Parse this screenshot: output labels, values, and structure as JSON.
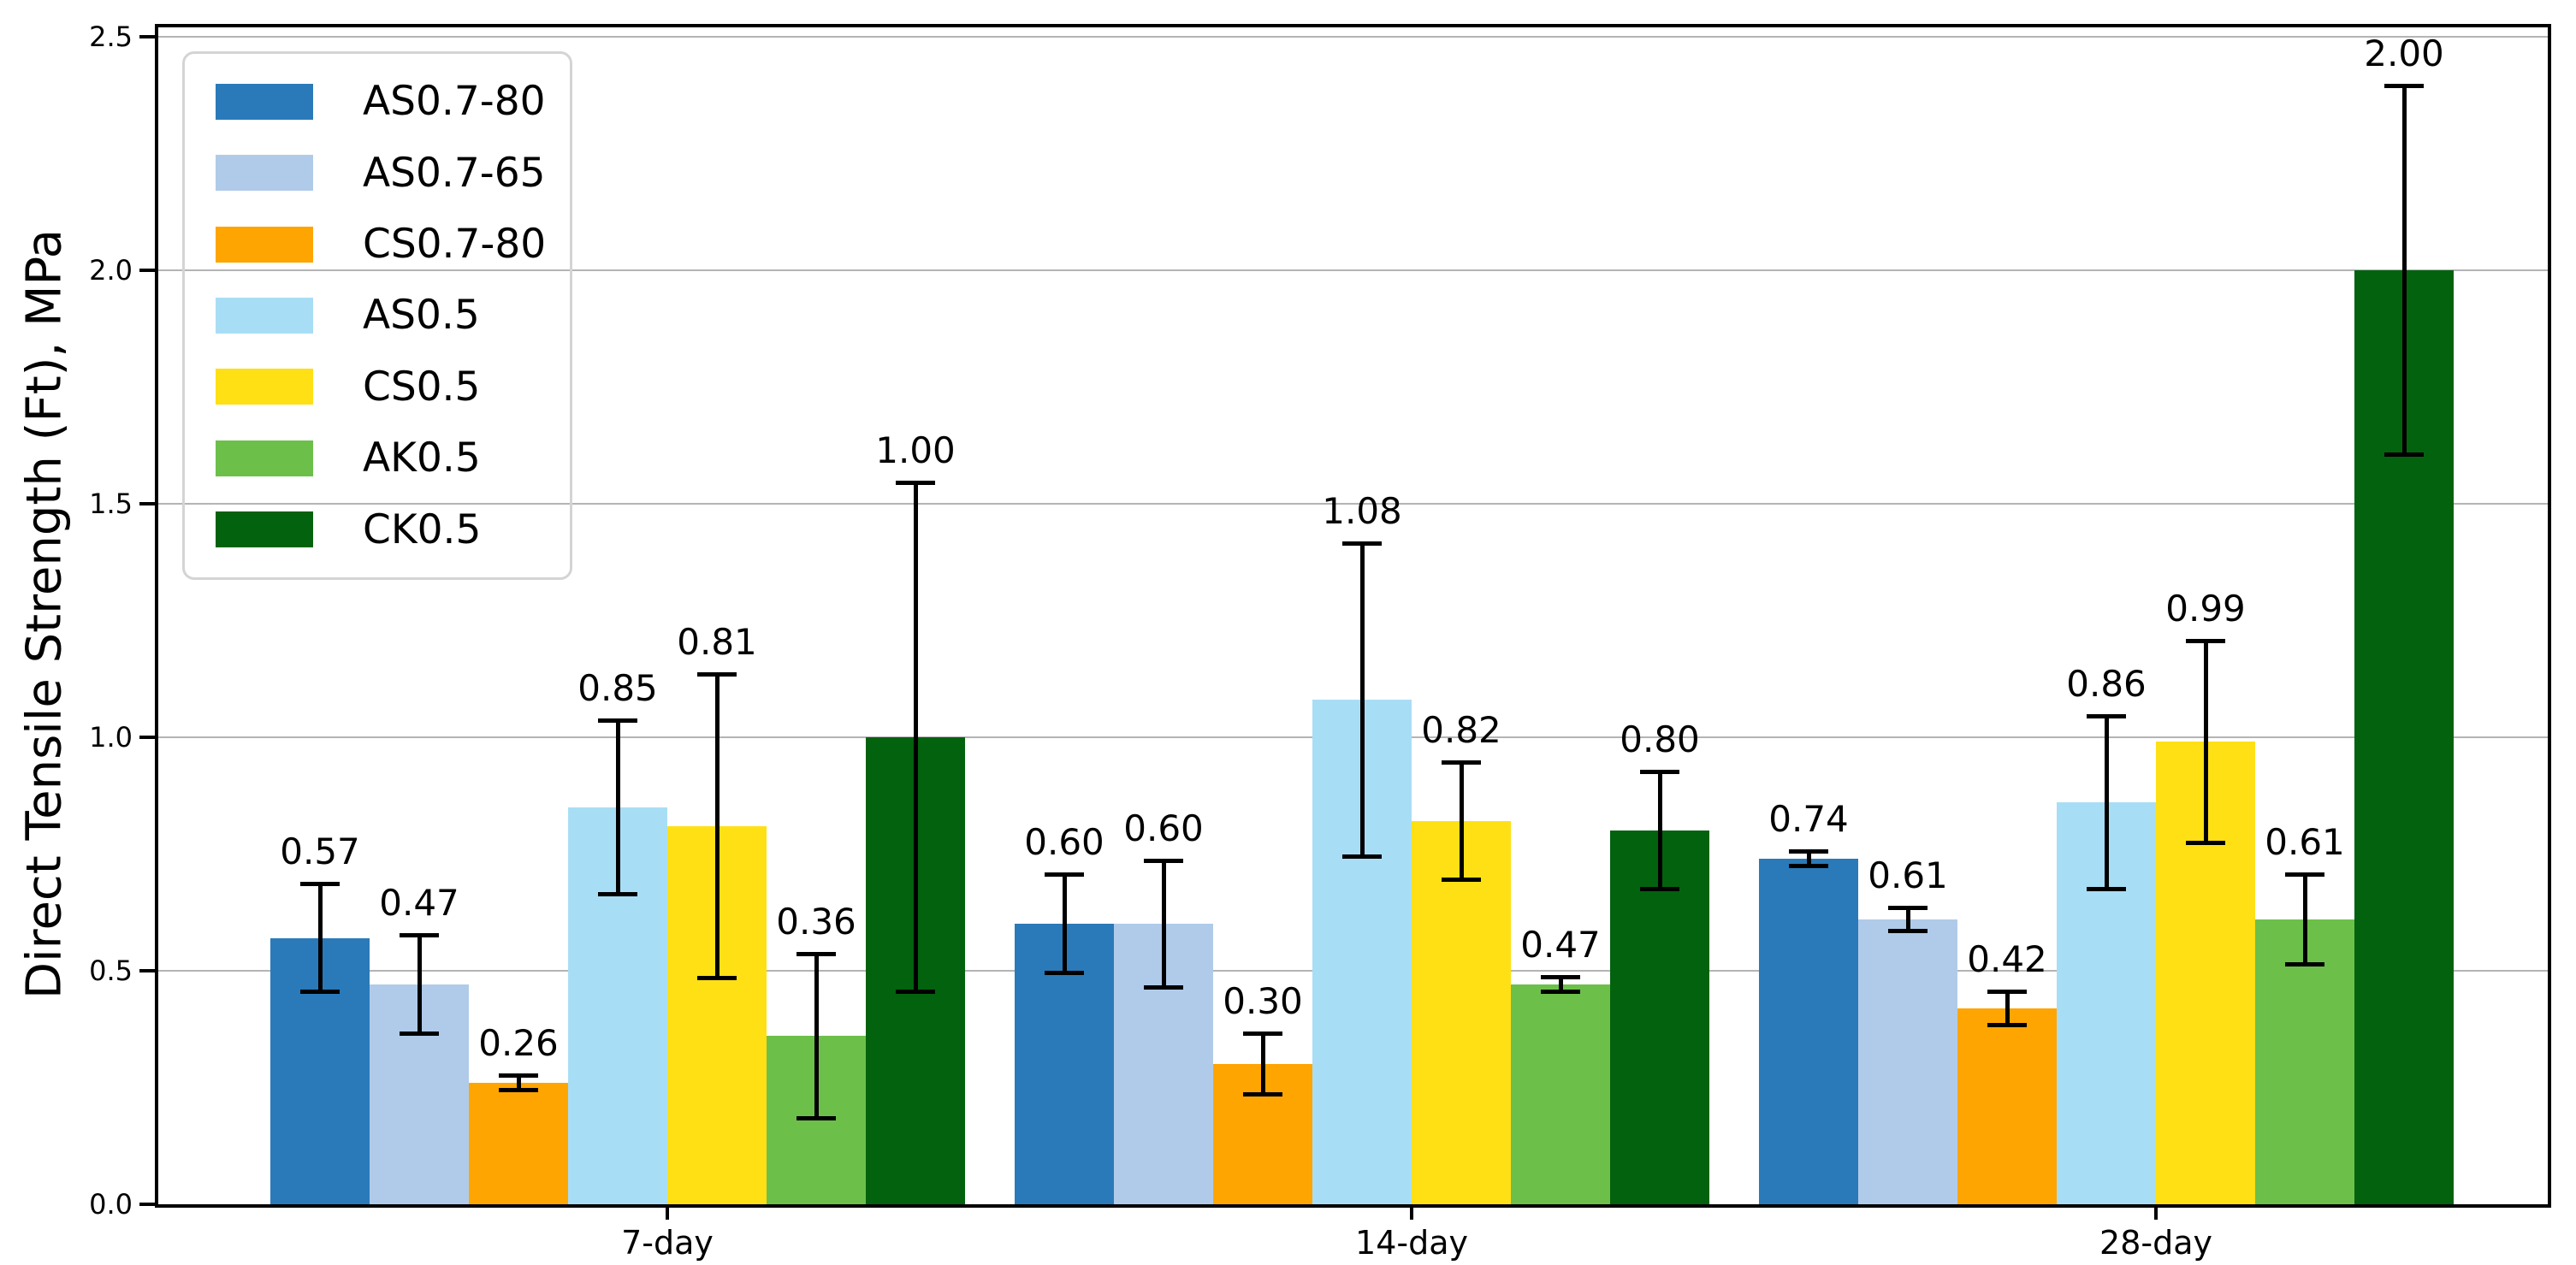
{
  "figure": {
    "background": "#ffffff"
  },
  "chart_data": {
    "type": "bar",
    "title": "",
    "xlabel": "",
    "ylabel": "Direct Tensile Strength (Ft), MPa",
    "categories": [
      "7-day",
      "14-day",
      "28-day"
    ],
    "ylim": [
      0,
      2.5
    ],
    "yticks": [
      0.0,
      0.5,
      1.0,
      1.5,
      2.0,
      2.5
    ],
    "ytick_labels": [
      "0.0",
      "0.5",
      "1.0",
      "1.5",
      "2.0",
      "2.5"
    ],
    "grid": "horizontal-gridlines-on",
    "gridline_color": "#b4b4b4",
    "legend_position": "upper-left",
    "error_bars": "plus-minus, black caps",
    "value_label_decimals": 2,
    "series": [
      {
        "name": "AS0.7-80",
        "color": "#2a7ab9",
        "values": [
          0.57,
          0.6,
          0.74
        ],
        "errors": [
          0.12,
          0.11,
          0.02
        ]
      },
      {
        "name": "AS0.7-65",
        "color": "#b0cbe9",
        "values": [
          0.47,
          0.6,
          0.61
        ],
        "errors": [
          0.11,
          0.14,
          0.03
        ]
      },
      {
        "name": "CS0.7-80",
        "color": "#ffa502",
        "values": [
          0.26,
          0.3,
          0.42
        ],
        "errors": [
          0.02,
          0.07,
          0.04
        ]
      },
      {
        "name": "AS0.5",
        "color": "#a8def5",
        "values": [
          0.85,
          1.08,
          0.86
        ],
        "errors": [
          0.19,
          0.34,
          0.19
        ]
      },
      {
        "name": "CS0.5",
        "color": "#ffe014",
        "values": [
          0.81,
          0.82,
          0.99
        ],
        "errors": [
          0.33,
          0.13,
          0.22
        ]
      },
      {
        "name": "AK0.5",
        "color": "#6cc04a",
        "values": [
          0.36,
          0.47,
          0.61
        ],
        "errors": [
          0.18,
          0.02,
          0.1
        ]
      },
      {
        "name": "CK0.5",
        "color": "#03620e",
        "values": [
          1.0,
          0.8,
          2.0
        ],
        "errors": [
          0.55,
          0.13,
          0.4
        ]
      }
    ]
  }
}
